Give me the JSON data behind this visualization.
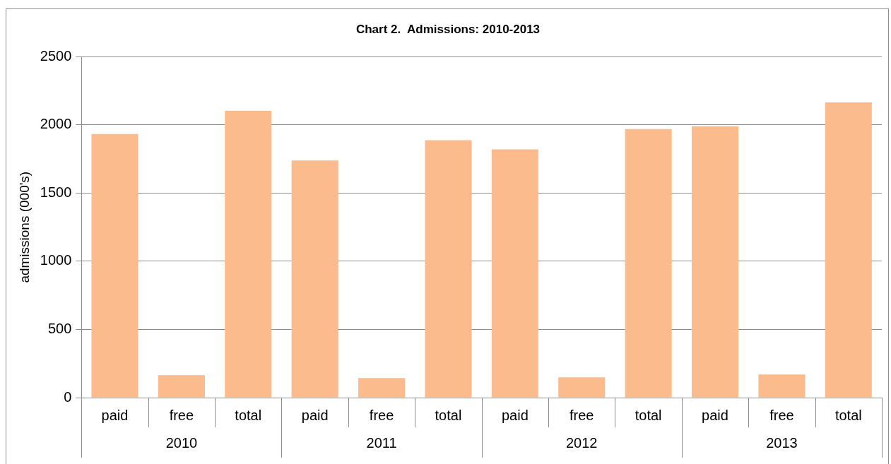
{
  "chart_data": {
    "type": "bar",
    "title": "Chart 2.  Admissions: 2010-2013",
    "ylabel": "admissions (000's)",
    "categories": [
      "paid",
      "free",
      "total",
      "paid",
      "free",
      "total",
      "paid",
      "free",
      "total",
      "paid",
      "free",
      "total"
    ],
    "values": [
      1934,
      165,
      2104,
      1739,
      144,
      1888,
      1821,
      149,
      1970,
      1991,
      170,
      2166
    ],
    "color": "#fbbb8c",
    "ylim": [
      0,
      2500
    ],
    "yticks": [
      0,
      500,
      1000,
      1500,
      2000,
      2500
    ],
    "grid": "y",
    "annotations": [
      "2010",
      "2011",
      "2012",
      "2013"
    ]
  }
}
